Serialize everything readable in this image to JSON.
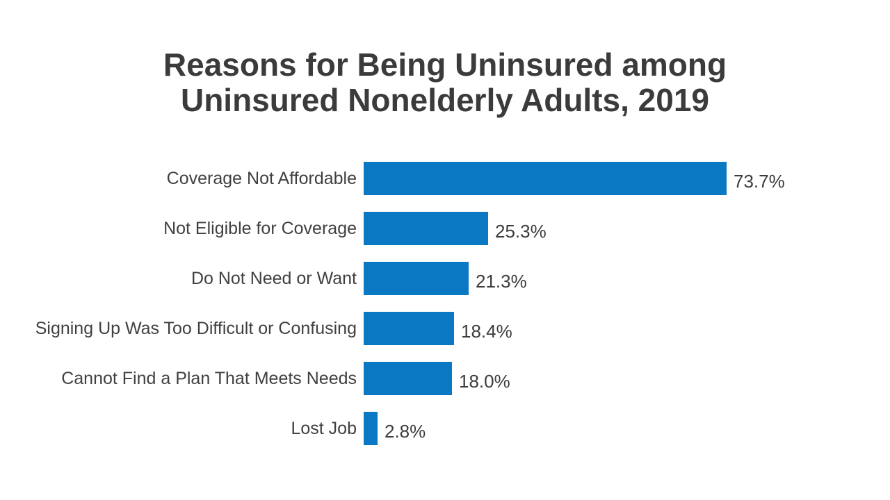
{
  "page": {
    "background_color": "#ffffff"
  },
  "chart_data": {
    "type": "bar",
    "orientation": "horizontal",
    "title": "Reasons for Being Uninsured among Uninsured Nonelderly Adults, 2019",
    "title_lines": [
      "Reasons for Being Uninsured among",
      "Uninsured Nonelderly Adults, 2019"
    ],
    "categories": [
      "Coverage Not Affordable",
      "Not Eligible for Coverage",
      "Do Not Need or Want",
      "Signing Up Was Too Difficult or Confusing",
      "Cannot Find a Plan That Meets Needs",
      "Lost Job"
    ],
    "values": [
      73.7,
      25.3,
      21.3,
      18.4,
      18.0,
      2.8
    ],
    "value_labels": [
      "73.7%",
      "25.3%",
      "21.3%",
      "18.4%",
      "18.0%",
      "2.8%"
    ],
    "xlabel": "",
    "ylabel": "",
    "xlim": [
      0,
      100
    ],
    "grid": false,
    "axes_shown": false,
    "legend": "none",
    "bar_color": "#0b78c4",
    "title_color": "#3b3b3b",
    "label_color": "#404040",
    "value_color": "#3c3c3c"
  }
}
